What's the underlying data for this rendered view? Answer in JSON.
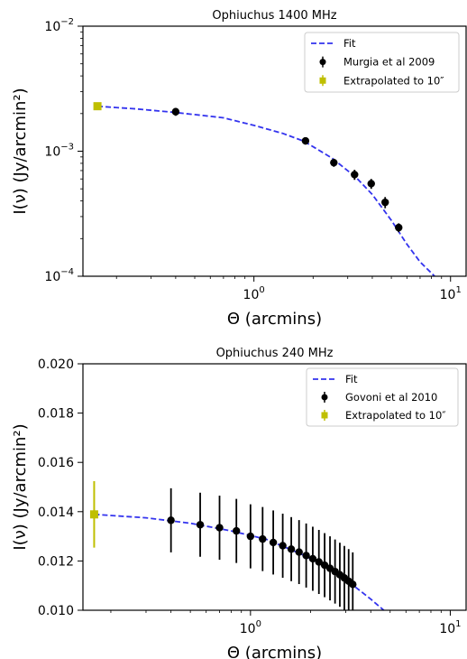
{
  "chart_data": [
    {
      "type": "scatter",
      "title": "Ophiuchus 1400 MHz",
      "xlabel": "Θ (arcmins)",
      "ylabel": "I(ν) (Jy/arcmin²)",
      "xscale": "log",
      "yscale": "log",
      "xlim": [
        0.135,
        12
      ],
      "ylim": [
        0.0001,
        0.01
      ],
      "xticks": [
        {
          "value": 1,
          "base": "10",
          "exp": "0"
        },
        {
          "value": 10,
          "base": "10",
          "exp": "1"
        }
      ],
      "yticks": [
        {
          "value": 0.0001,
          "base": "10",
          "exp": "−4"
        },
        {
          "value": 0.001,
          "base": "10",
          "exp": "−3"
        },
        {
          "value": 0.01,
          "base": "10",
          "exp": "−2"
        }
      ],
      "legend_position": "top-right",
      "series": [
        {
          "name": "Fit",
          "kind": "line",
          "color": "#3333ee",
          "x": [
            0.16,
            0.25,
            0.4,
            0.7,
            1.0,
            1.4,
            1.8,
            2.5,
            3.3,
            4.0,
            5.0,
            6.0,
            7.0,
            8.3
          ],
          "y": [
            0.00229,
            0.00218,
            0.00204,
            0.00185,
            0.00161,
            0.00139,
            0.0012,
            0.00088,
            0.00062,
            0.00045,
            0.00028,
            0.00018,
            0.00013,
            0.0001
          ]
        },
        {
          "name": "Murgia et al 2009",
          "kind": "errorbar",
          "color": "#000000",
          "x": [
            0.4,
            1.83,
            2.55,
            3.25,
            3.95,
            4.65,
            5.45
          ],
          "y": [
            0.00207,
            0.00121,
            0.00081,
            0.00065,
            0.00055,
            0.00039,
            0.000245
          ],
          "err": [
            0.00015,
            8e-05,
            6e-05,
            6e-05,
            5e-05,
            4e-05,
            2e-05
          ]
        },
        {
          "name": "Extrapolated to 10″",
          "kind": "errorbar",
          "color": "#bfbf00",
          "x": [
            0.16
          ],
          "y": [
            0.00229
          ],
          "err": [
            0.00012
          ]
        }
      ]
    },
    {
      "type": "scatter",
      "title": "Ophiuchus 240 MHz",
      "xlabel": "Θ (arcmins)",
      "ylabel": "I(ν) (Jy/arcmin²)",
      "xscale": "log",
      "yscale": "linear",
      "xlim": [
        0.145,
        12
      ],
      "ylim": [
        0.01,
        0.02
      ],
      "xticks": [
        {
          "value": 1,
          "base": "10",
          "exp": "0"
        },
        {
          "value": 10,
          "base": "10",
          "exp": "1"
        }
      ],
      "yticks": [
        {
          "value": 0.01,
          "label": "0.010"
        },
        {
          "value": 0.012,
          "label": "0.012"
        },
        {
          "value": 0.014,
          "label": "0.014"
        },
        {
          "value": 0.016,
          "label": "0.016"
        },
        {
          "value": 0.018,
          "label": "0.018"
        },
        {
          "value": 0.02,
          "label": "0.020"
        }
      ],
      "legend_position": "top-right",
      "series": [
        {
          "name": "Fit",
          "kind": "line",
          "color": "#3333ee",
          "x": [
            0.165,
            0.3,
            0.5,
            0.8,
            1.2,
            1.8,
            2.5,
            3.3,
            4.0,
            4.8
          ],
          "y": [
            0.01389,
            0.01375,
            0.01353,
            0.01322,
            0.01288,
            0.01228,
            0.0117,
            0.01098,
            0.01045,
            0.0099
          ]
        },
        {
          "name": "Govoni et al 2010",
          "kind": "errorbar",
          "color": "#000000",
          "x": [
            0.4,
            0.56,
            0.7,
            0.85,
            1.0,
            1.15,
            1.3,
            1.45,
            1.6,
            1.75,
            1.9,
            2.05,
            2.2,
            2.35,
            2.5,
            2.65,
            2.8,
            2.95,
            3.1,
            3.25
          ],
          "y": [
            0.01365,
            0.01347,
            0.01335,
            0.01322,
            0.013,
            0.01289,
            0.01275,
            0.01262,
            0.01248,
            0.01236,
            0.01222,
            0.01209,
            0.01196,
            0.01183,
            0.0117,
            0.01157,
            0.01144,
            0.01131,
            0.01118,
            0.01105
          ],
          "err": [
            0.0013,
            0.0013,
            0.0013,
            0.0013,
            0.0013,
            0.0013,
            0.0013,
            0.0013,
            0.0013,
            0.0013,
            0.0013,
            0.0013,
            0.0013,
            0.0013,
            0.0013,
            0.0013,
            0.0013,
            0.0013,
            0.0013,
            0.0013
          ]
        },
        {
          "name": "Extrapolated to 10″",
          "kind": "errorbar",
          "color": "#bfbf00",
          "x": [
            0.165
          ],
          "y": [
            0.01389
          ],
          "err": [
            0.00135
          ]
        }
      ]
    }
  ]
}
